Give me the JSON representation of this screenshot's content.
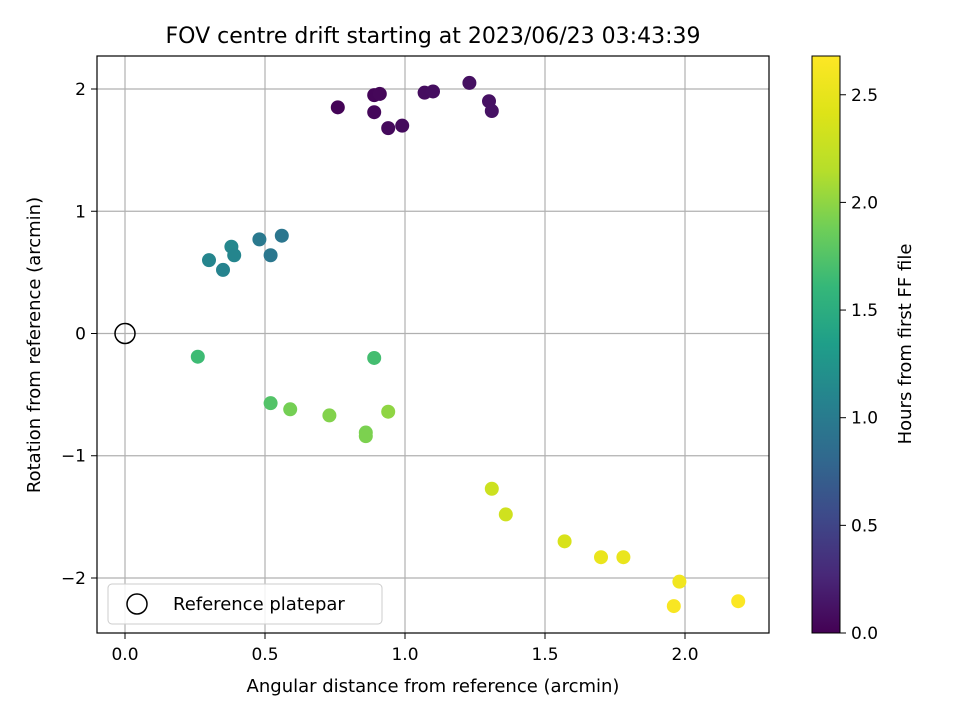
{
  "chart_data": {
    "type": "scatter",
    "title": "FOV centre drift starting at 2023/06/23 03:43:39",
    "xlabel": "Angular distance from reference (arcmin)",
    "ylabel": "Rotation from reference (arcmin)",
    "xlim": [
      -0.1,
      2.3
    ],
    "ylim": [
      -2.45,
      2.27
    ],
    "xticks": [
      0.0,
      0.5,
      1.0,
      1.5,
      2.0
    ],
    "xtick_labels": [
      "0.0",
      "0.5",
      "1.0",
      "1.5",
      "2.0"
    ],
    "yticks": [
      -2,
      -1,
      0,
      1,
      2
    ],
    "ytick_labels": [
      "−2",
      "−1",
      "0",
      "1",
      "2"
    ],
    "grid": true,
    "legend": {
      "position": "lower-left",
      "entries": [
        "Reference platepar"
      ]
    },
    "reference_point": {
      "x": 0.0,
      "y": 0.0,
      "label": "Reference platepar"
    },
    "colorbar": {
      "label": "Hours from first FF file",
      "colormap": "viridis",
      "min": 0.0,
      "max": 2.68,
      "ticks": [
        0.0,
        0.5,
        1.0,
        1.5,
        2.0,
        2.5
      ],
      "tick_labels": [
        "0.0",
        "0.5",
        "1.0",
        "1.5",
        "2.0",
        "2.5"
      ]
    },
    "points": [
      {
        "x": 0.76,
        "y": 1.85,
        "hours": 0.02
      },
      {
        "x": 0.89,
        "y": 1.95,
        "hours": 0.03
      },
      {
        "x": 0.91,
        "y": 1.96,
        "hours": 0.04
      },
      {
        "x": 0.89,
        "y": 1.81,
        "hours": 0.05
      },
      {
        "x": 0.94,
        "y": 1.68,
        "hours": 0.06
      },
      {
        "x": 0.99,
        "y": 1.7,
        "hours": 0.07
      },
      {
        "x": 1.07,
        "y": 1.97,
        "hours": 0.08
      },
      {
        "x": 1.1,
        "y": 1.98,
        "hours": 0.09
      },
      {
        "x": 1.23,
        "y": 2.05,
        "hours": 0.1
      },
      {
        "x": 1.3,
        "y": 1.9,
        "hours": 0.11
      },
      {
        "x": 1.31,
        "y": 1.82,
        "hours": 0.12
      },
      {
        "x": 0.3,
        "y": 0.6,
        "hours": 1.1
      },
      {
        "x": 0.35,
        "y": 0.52,
        "hours": 1.08
      },
      {
        "x": 0.38,
        "y": 0.71,
        "hours": 1.12
      },
      {
        "x": 0.39,
        "y": 0.64,
        "hours": 1.1
      },
      {
        "x": 0.48,
        "y": 0.77,
        "hours": 0.98
      },
      {
        "x": 0.52,
        "y": 0.64,
        "hours": 0.96
      },
      {
        "x": 0.56,
        "y": 0.8,
        "hours": 0.95
      },
      {
        "x": 0.26,
        "y": -0.19,
        "hours": 1.65
      },
      {
        "x": 0.89,
        "y": -0.2,
        "hours": 1.68
      },
      {
        "x": 0.52,
        "y": -0.57,
        "hours": 1.75
      },
      {
        "x": 0.59,
        "y": -0.62,
        "hours": 1.9
      },
      {
        "x": 0.73,
        "y": -0.67,
        "hours": 1.95
      },
      {
        "x": 0.86,
        "y": -0.81,
        "hours": 1.92
      },
      {
        "x": 0.86,
        "y": -0.84,
        "hours": 1.93
      },
      {
        "x": 0.94,
        "y": -0.64,
        "hours": 2.0
      },
      {
        "x": 1.31,
        "y": -1.27,
        "hours": 2.3
      },
      {
        "x": 1.36,
        "y": -1.48,
        "hours": 2.32
      },
      {
        "x": 1.57,
        "y": -1.7,
        "hours": 2.38
      },
      {
        "x": 1.7,
        "y": -1.83,
        "hours": 2.52
      },
      {
        "x": 1.78,
        "y": -1.83,
        "hours": 2.52
      },
      {
        "x": 1.98,
        "y": -2.03,
        "hours": 2.58
      },
      {
        "x": 1.96,
        "y": -2.23,
        "hours": 2.64
      },
      {
        "x": 2.19,
        "y": -2.19,
        "hours": 2.66
      }
    ]
  }
}
